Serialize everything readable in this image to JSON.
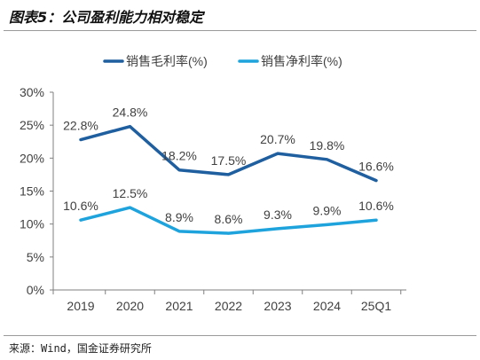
{
  "title": "图表5：公司盈利能力相对稳定",
  "source": "来源：Wind，国金证券研究所",
  "chart_data": {
    "type": "line",
    "x": [
      "2019",
      "2020",
      "2021",
      "2022",
      "2023",
      "2024",
      "25Q1"
    ],
    "y_ticks": [
      "0%",
      "5%",
      "10%",
      "15%",
      "20%",
      "25%",
      "30%"
    ],
    "ylim": [
      0,
      30
    ],
    "grid": false,
    "legend_position": "top",
    "series": [
      {
        "name": "销售毛利率(%)",
        "color": "#1f5fa0",
        "values": [
          22.8,
          24.8,
          18.2,
          17.5,
          20.7,
          19.8,
          16.6
        ],
        "labels": [
          "22.8%",
          "24.8%",
          "18.2%",
          "17.5%",
          "20.7%",
          "19.8%",
          "16.6%"
        ]
      },
      {
        "name": "销售净利率(%)",
        "color": "#1ea3dd",
        "values": [
          10.6,
          12.5,
          8.9,
          8.6,
          9.3,
          9.9,
          10.6
        ],
        "labels": [
          "10.6%",
          "12.5%",
          "8.9%",
          "8.6%",
          "9.3%",
          "9.9%",
          "10.6%"
        ]
      }
    ]
  }
}
